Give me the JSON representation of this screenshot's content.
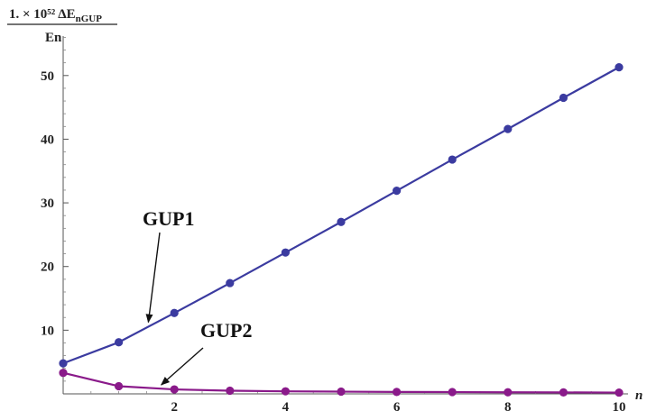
{
  "chart_data": {
    "type": "line",
    "ylabel_numerator": "1. × 10⁵² ΔE",
    "ylabel_numerator_sub": "nGUP",
    "ylabel_denominator": "En",
    "xlabel": "n",
    "xlim": [
      0,
      10
    ],
    "ylim": [
      0,
      55
    ],
    "x_ticks": [
      2,
      4,
      6,
      8,
      10
    ],
    "y_ticks": [
      10,
      20,
      30,
      40,
      50
    ],
    "grid": false,
    "x": [
      0,
      1,
      2,
      3,
      4,
      5,
      6,
      7,
      8,
      9,
      10
    ],
    "series": [
      {
        "name": "GUP1",
        "color": "#3b3ba0",
        "values": [
          4.8,
          8.1,
          12.7,
          17.4,
          22.2,
          27.0,
          31.9,
          36.8,
          41.6,
          46.5,
          51.3
        ]
      },
      {
        "name": "GUP2",
        "color": "#8a1a8a",
        "values": [
          3.3,
          1.2,
          0.7,
          0.5,
          0.4,
          0.35,
          0.3,
          0.28,
          0.25,
          0.23,
          0.2
        ]
      }
    ],
    "annotations": [
      {
        "text": "GUP1",
        "points_to_series": 0,
        "points_to_x": 1.5
      },
      {
        "text": "GUP2",
        "points_to_series": 1,
        "points_to_x": 1.7
      }
    ]
  }
}
